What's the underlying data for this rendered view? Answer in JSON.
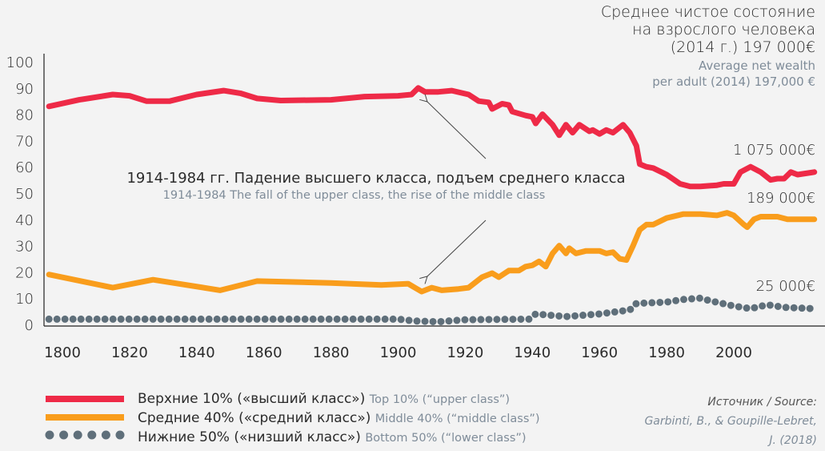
{
  "title": {
    "ru": [
      "Среднее чистое состояние",
      "на взрослого человека",
      "(2014 г.) 197 000€"
    ],
    "en": [
      "Average net wealth",
      "per adult (2014) 197,000 €"
    ]
  },
  "annotation": {
    "ru": "1914-1984 гг. Падение высшего класса, подъем среднего класса",
    "en": "1914-1984 The fall of the upper class, the rise of the middle class"
  },
  "end_labels": {
    "top": "1 075 000€",
    "middle": "189 000€",
    "bottom": "25 000€"
  },
  "legend": [
    {
      "ru": "Верхние 10% («высший класс»)",
      "en": "Top 10% (“upper class”)"
    },
    {
      "ru": "Средние 40% («средний класс»)",
      "en": "Middle 40% (“middle class”)"
    },
    {
      "ru": "Нижние 50% («низший класс»)",
      "en": "Bottom 50% (“lower class”)"
    }
  ],
  "source": {
    "label_ru": "Источник",
    "label_en": "Source:",
    "line1": "Garbinti, B., & Goupille-Lebret,",
    "line2": "J. (2018)"
  },
  "chart_data": {
    "type": "line",
    "xlim": [
      1796,
      2024
    ],
    "ylim": [
      0,
      100
    ],
    "x_ticks": [
      1800,
      1820,
      1840,
      1860,
      1880,
      1900,
      1920,
      1940,
      1960,
      1980,
      2000
    ],
    "y_ticks": [
      0,
      10,
      20,
      30,
      40,
      50,
      60,
      70,
      80,
      90,
      100
    ],
    "grid": false,
    "legend_position": "bottom-left",
    "series": [
      {
        "name": "Верхние 10% («высший класс») Top 10% (“upper class”)",
        "color": "#ee2a47",
        "style": "solid",
        "points": [
          [
            1796,
            83
          ],
          [
            1805,
            85.5
          ],
          [
            1815,
            87.5
          ],
          [
            1820,
            87
          ],
          [
            1825,
            85
          ],
          [
            1832,
            85
          ],
          [
            1840,
            87.5
          ],
          [
            1848,
            89
          ],
          [
            1853,
            88
          ],
          [
            1858,
            86
          ],
          [
            1865,
            85.2
          ],
          [
            1880,
            85.5
          ],
          [
            1890,
            86.7
          ],
          [
            1900,
            87
          ],
          [
            1904,
            87.5
          ],
          [
            1906,
            90
          ],
          [
            1908,
            88.5
          ],
          [
            1912,
            88.5
          ],
          [
            1916,
            89
          ],
          [
            1921,
            87.5
          ],
          [
            1924,
            85
          ],
          [
            1927,
            84.5
          ],
          [
            1928,
            82
          ],
          [
            1931,
            84
          ],
          [
            1933,
            83.5
          ],
          [
            1934,
            81
          ],
          [
            1938,
            79.5
          ],
          [
            1940,
            79
          ],
          [
            1941,
            76.5
          ],
          [
            1943,
            80
          ],
          [
            1946,
            76
          ],
          [
            1948,
            72
          ],
          [
            1950,
            76
          ],
          [
            1952,
            73
          ],
          [
            1954,
            76
          ],
          [
            1957,
            73.5
          ],
          [
            1958,
            74
          ],
          [
            1960,
            72.5
          ],
          [
            1962,
            74
          ],
          [
            1964,
            73
          ],
          [
            1967,
            76
          ],
          [
            1969,
            73
          ],
          [
            1971,
            68
          ],
          [
            1972,
            61
          ],
          [
            1974,
            60
          ],
          [
            1976,
            59.5
          ],
          [
            1980,
            57
          ],
          [
            1984,
            53.5
          ],
          [
            1987,
            52.5
          ],
          [
            1990,
            52.5
          ],
          [
            1995,
            53
          ],
          [
            1997,
            53.5
          ],
          [
            2000,
            53.5
          ],
          [
            2002,
            58
          ],
          [
            2005,
            60
          ],
          [
            2008,
            58
          ],
          [
            2011,
            55
          ],
          [
            2013,
            55.5
          ],
          [
            2015,
            55.5
          ],
          [
            2017,
            58
          ],
          [
            2019,
            57
          ],
          [
            2024,
            58
          ]
        ]
      },
      {
        "name": "Средние 40% («средний класс») Middle 40% (“middle class”)",
        "color": "#f99d1c",
        "style": "solid",
        "points": [
          [
            1796,
            19
          ],
          [
            1815,
            14
          ],
          [
            1827,
            17
          ],
          [
            1847,
            13
          ],
          [
            1858,
            16.5
          ],
          [
            1880,
            15.8
          ],
          [
            1895,
            15
          ],
          [
            1903,
            15.5
          ],
          [
            1905,
            14
          ],
          [
            1907,
            12.5
          ],
          [
            1910,
            14
          ],
          [
            1913,
            13
          ],
          [
            1918,
            13.5
          ],
          [
            1921,
            14
          ],
          [
            1925,
            18
          ],
          [
            1928,
            19.5
          ],
          [
            1930,
            18
          ],
          [
            1933,
            20.5
          ],
          [
            1936,
            20.5
          ],
          [
            1938,
            22
          ],
          [
            1940,
            22.5
          ],
          [
            1942,
            24
          ],
          [
            1944,
            22
          ],
          [
            1946,
            27
          ],
          [
            1948,
            30
          ],
          [
            1950,
            27
          ],
          [
            1951,
            29
          ],
          [
            1953,
            27
          ],
          [
            1956,
            28
          ],
          [
            1960,
            28
          ],
          [
            1962,
            27
          ],
          [
            1964,
            27.5
          ],
          [
            1966,
            25
          ],
          [
            1968,
            24.5
          ],
          [
            1970,
            30
          ],
          [
            1972,
            36
          ],
          [
            1974,
            38
          ],
          [
            1976,
            38
          ],
          [
            1980,
            40.5
          ],
          [
            1985,
            42
          ],
          [
            1990,
            42
          ],
          [
            1995,
            41.5
          ],
          [
            1998,
            42.5
          ],
          [
            2000,
            41.5
          ],
          [
            2003,
            38
          ],
          [
            2004,
            37
          ],
          [
            2006,
            40
          ],
          [
            2008,
            41
          ],
          [
            2013,
            41
          ],
          [
            2016,
            40
          ],
          [
            2024,
            40
          ]
        ]
      },
      {
        "name": "Нижние 50% («низший класс») Bottom 50% (“lower class”)",
        "color": "#5f6f7a",
        "style": "dotted",
        "points": [
          [
            1796,
            2
          ],
          [
            1900,
            2
          ],
          [
            1905,
            1.3
          ],
          [
            1912,
            1
          ],
          [
            1920,
            1.8
          ],
          [
            1939,
            2
          ],
          [
            1941,
            4
          ],
          [
            1950,
            3
          ],
          [
            1960,
            4
          ],
          [
            1966,
            5
          ],
          [
            1969,
            5.5
          ],
          [
            1971,
            8
          ],
          [
            1980,
            8.5
          ],
          [
            1985,
            9.5
          ],
          [
            1990,
            10
          ],
          [
            1993,
            9
          ],
          [
            2000,
            7
          ],
          [
            2005,
            6
          ],
          [
            2010,
            7.5
          ],
          [
            2015,
            6.5
          ],
          [
            2024,
            6
          ]
        ]
      }
    ]
  }
}
